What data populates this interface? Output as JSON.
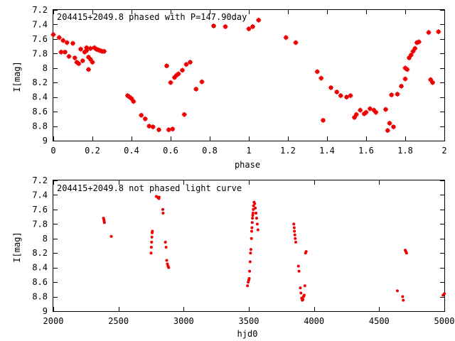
{
  "chart_data": [
    {
      "type": "scatter",
      "title": "204415+2049.8 phased with P=147.90day",
      "xlabel": "phase",
      "ylabel": "I[mag]",
      "xlim": [
        0,
        2
      ],
      "ylim": [
        7.2,
        9
      ],
      "y_inverted": true,
      "x_ticks": [
        "0",
        "0.2",
        "0.4",
        "0.6",
        "0.8",
        "1",
        "1.2",
        "1.4",
        "1.6",
        "1.8",
        "2"
      ],
      "y_ticks": [
        "7.2",
        "7.4",
        "7.6",
        "7.8",
        "8",
        "8.2",
        "8.4",
        "8.6",
        "8.8",
        "9"
      ],
      "color": "#ee0000",
      "marker": "cross-star",
      "grid": false,
      "series": [
        {
          "x": [
            0.0,
            0.03,
            0.04,
            0.05,
            0.06,
            0.07,
            0.08,
            0.1,
            0.11,
            0.12,
            0.13,
            0.14,
            0.15,
            0.16,
            0.17,
            0.17,
            0.18,
            0.18,
            0.19,
            0.19,
            0.2,
            0.21,
            0.22,
            0.23,
            0.24,
            0.25,
            0.26,
            0.38,
            0.39,
            0.4,
            0.41,
            0.45,
            0.47,
            0.49,
            0.51,
            0.54,
            0.58,
            0.59,
            0.6,
            0.61,
            0.62,
            0.63,
            0.64,
            0.66,
            0.67,
            0.68,
            0.7,
            0.73,
            0.76,
            0.82,
            0.88,
            1.0,
            1.02,
            1.05,
            1.19,
            1.24,
            1.35,
            1.37,
            1.38,
            1.42,
            1.45,
            1.47,
            1.5,
            1.52,
            1.54,
            1.55,
            1.57,
            1.59,
            1.6,
            1.62,
            1.64,
            1.65,
            1.7,
            1.71,
            1.72,
            1.73,
            1.74,
            1.76,
            1.78,
            1.8,
            1.8,
            1.81,
            1.82,
            1.83,
            1.84,
            1.85,
            1.86,
            1.87,
            1.92,
            1.93,
            1.94,
            1.97
          ],
          "y": [
            7.54,
            7.58,
            7.78,
            7.62,
            7.78,
            7.65,
            7.84,
            7.66,
            7.86,
            7.92,
            7.94,
            7.74,
            7.9,
            7.78,
            7.76,
            7.72,
            7.85,
            8.02,
            7.73,
            7.88,
            7.92,
            7.72,
            7.74,
            7.75,
            7.76,
            7.77,
            7.77,
            8.38,
            8.4,
            8.42,
            8.46,
            8.65,
            8.7,
            8.8,
            8.81,
            8.85,
            7.97,
            8.85,
            8.2,
            8.84,
            8.13,
            8.1,
            8.08,
            8.03,
            8.64,
            7.95,
            7.92,
            8.29,
            8.19,
            7.42,
            7.43,
            7.46,
            7.43,
            7.34,
            7.58,
            7.65,
            8.05,
            8.14,
            8.72,
            8.27,
            8.33,
            8.38,
            8.4,
            8.38,
            8.68,
            8.64,
            8.58,
            8.63,
            8.61,
            8.56,
            8.58,
            8.61,
            8.57,
            8.86,
            8.76,
            8.37,
            8.81,
            8.36,
            8.25,
            8.15,
            8.0,
            8.02,
            7.86,
            7.82,
            7.77,
            7.73,
            7.65,
            7.64,
            7.51,
            8.16,
            8.2,
            7.5
          ]
        }
      ]
    },
    {
      "type": "scatter",
      "title": "204415+2049.8 not phased light curve",
      "xlabel": "hjd0",
      "ylabel": "I[mag]",
      "xlim": [
        2000,
        5000
      ],
      "ylim": [
        7.2,
        9
      ],
      "y_inverted": true,
      "x_ticks": [
        "2000",
        "2500",
        "3000",
        "3500",
        "4000",
        "4500",
        "5000"
      ],
      "y_ticks": [
        "7.2",
        "7.4",
        "7.6",
        "7.8",
        "8",
        "8.2",
        "8.4",
        "8.6",
        "8.8",
        "9"
      ],
      "color": "#ee0000",
      "marker": "dot",
      "grid": false,
      "series": [
        {
          "x": [
            2385,
            2388,
            2390,
            2392,
            2445,
            2750,
            2752,
            2754,
            2756,
            2758,
            2760,
            2790,
            2800,
            2805,
            2810,
            2812,
            2840,
            2842,
            2860,
            2865,
            2870,
            2875,
            2880,
            2885,
            3490,
            3495,
            3500,
            3503,
            3506,
            3510,
            3513,
            3516,
            3520,
            3522,
            3524,
            3526,
            3528,
            3530,
            3532,
            3534,
            3536,
            3540,
            3545,
            3550,
            3555,
            3560,
            3565,
            3570,
            3845,
            3848,
            3850,
            3853,
            3856,
            3860,
            3880,
            3885,
            3895,
            3900,
            3905,
            3910,
            3915,
            3920,
            3925,
            3930,
            3935,
            3940,
            4640,
            4680,
            4685,
            4700,
            4705,
            4710,
            4990,
            5000
          ],
          "y": [
            7.72,
            7.74,
            7.76,
            7.78,
            7.97,
            8.2,
            8.12,
            8.05,
            7.98,
            7.92,
            7.9,
            7.42,
            7.43,
            7.44,
            7.45,
            7.43,
            7.6,
            7.65,
            8.05,
            8.12,
            8.3,
            8.35,
            8.38,
            8.4,
            8.65,
            8.6,
            8.57,
            8.55,
            8.45,
            8.32,
            8.2,
            8.15,
            8.0,
            7.9,
            7.85,
            7.78,
            7.72,
            7.68,
            7.65,
            7.6,
            7.55,
            7.5,
            7.52,
            7.58,
            7.65,
            7.72,
            7.8,
            7.88,
            7.8,
            7.85,
            7.9,
            7.95,
            8.0,
            8.05,
            8.38,
            8.45,
            8.68,
            8.75,
            8.82,
            8.85,
            8.84,
            8.8,
            8.78,
            8.65,
            8.2,
            8.18,
            8.72,
            8.8,
            8.85,
            8.16,
            8.18,
            8.2,
            8.78,
            8.76
          ]
        }
      ]
    }
  ]
}
